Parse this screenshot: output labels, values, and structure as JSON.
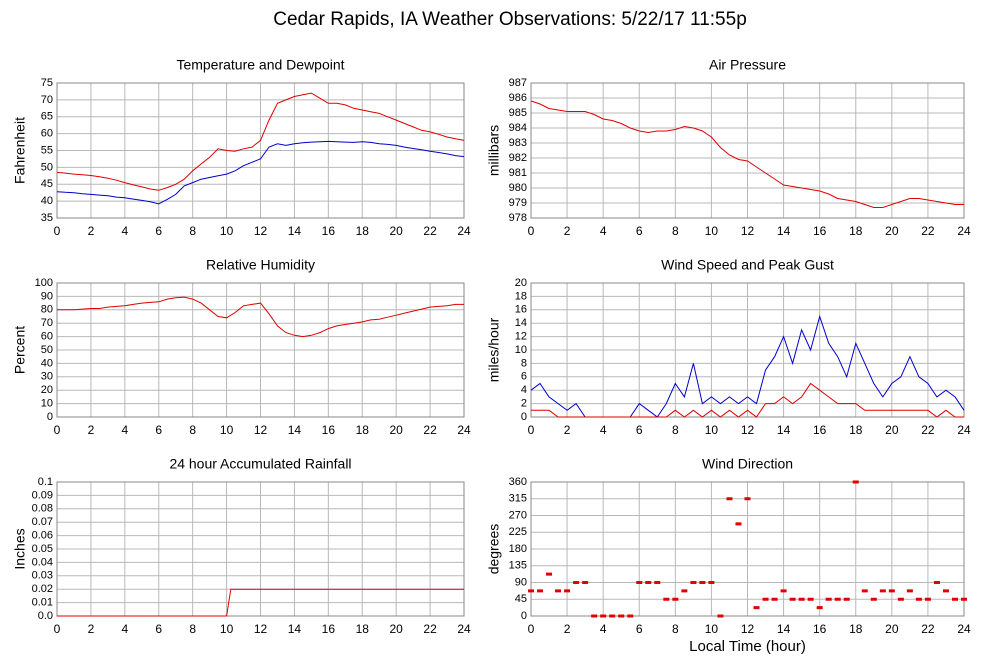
{
  "title": "Cedar Rapids, IA Weather Observations: 5/22/17 11:55p",
  "chart_data": [
    {
      "type": "line",
      "title": "Temperature and Dewpoint",
      "ylabel": "Fahrenheit",
      "x": [
        0,
        0.5,
        1,
        1.5,
        2,
        2.5,
        3,
        3.5,
        4,
        4.5,
        5,
        5.5,
        6,
        6.5,
        7,
        7.5,
        8,
        8.5,
        9,
        9.5,
        10,
        10.5,
        11,
        11.5,
        12,
        12.5,
        13,
        13.5,
        14,
        14.5,
        15,
        15.5,
        16,
        16.5,
        17,
        17.5,
        18,
        18.5,
        19,
        19.5,
        20,
        20.5,
        21,
        21.5,
        22,
        22.5,
        23,
        23.5,
        24
      ],
      "series": [
        {
          "color": "#e00000",
          "values": [
            48.5,
            48.3,
            48,
            47.8,
            47.6,
            47.2,
            46.8,
            46.2,
            45.5,
            44.8,
            44.2,
            43.6,
            43.2,
            44,
            45,
            46.5,
            49,
            51,
            53,
            55.5,
            55,
            54.8,
            55.5,
            56,
            58,
            64,
            69,
            70,
            71,
            71.5,
            72,
            70.5,
            69,
            69,
            68.5,
            67.5,
            67,
            66.5,
            66,
            65,
            64,
            63,
            62,
            61,
            60.5,
            59.8,
            59,
            58.5,
            58
          ]
        },
        {
          "color": "#0000d0",
          "values": [
            42.8,
            42.6,
            42.5,
            42.2,
            42,
            41.8,
            41.6,
            41.2,
            41,
            40.6,
            40.2,
            39.8,
            39.2,
            40.5,
            42,
            44.5,
            45.5,
            46.5,
            47,
            47.5,
            48,
            49,
            50.5,
            51.5,
            52.5,
            56,
            57,
            56.5,
            57,
            57.3,
            57.5,
            57.6,
            57.7,
            57.6,
            57.5,
            57.4,
            57.6,
            57.4,
            57,
            56.8,
            56.5,
            56,
            55.6,
            55.2,
            54.8,
            54.4,
            54,
            53.5,
            53.2
          ]
        }
      ],
      "xlim": [
        0,
        24
      ],
      "xticks": [
        0,
        2,
        4,
        6,
        8,
        10,
        12,
        14,
        16,
        18,
        20,
        22,
        24
      ],
      "ylim": [
        35,
        75
      ],
      "yticks": [
        35,
        40,
        45,
        50,
        55,
        60,
        65,
        70,
        75
      ],
      "grid": true
    },
    {
      "type": "line",
      "title": "Air Pressure",
      "ylabel": "millibars",
      "x": [
        0,
        0.5,
        1,
        1.5,
        2,
        2.5,
        3,
        3.5,
        4,
        4.5,
        5,
        5.5,
        6,
        6.5,
        7,
        7.5,
        8,
        8.5,
        9,
        9.5,
        10,
        10.5,
        11,
        11.5,
        12,
        12.5,
        13,
        13.5,
        14,
        14.5,
        15,
        15.5,
        16,
        16.5,
        17,
        17.5,
        18,
        18.5,
        19,
        19.5,
        20,
        20.5,
        21,
        21.5,
        22,
        22.5,
        23,
        23.5,
        24
      ],
      "series": [
        {
          "color": "#e00000",
          "values": [
            985.8,
            985.6,
            985.3,
            985.2,
            985.1,
            985.1,
            985.1,
            984.9,
            984.6,
            984.5,
            984.3,
            984.0,
            983.8,
            983.7,
            983.8,
            983.8,
            983.9,
            984.1,
            984,
            983.8,
            983.4,
            982.7,
            982.2,
            981.9,
            981.8,
            981.4,
            981,
            980.6,
            980.2,
            980.1,
            980,
            979.9,
            979.8,
            979.6,
            979.3,
            979.2,
            979.1,
            978.9,
            978.7,
            978.7,
            978.9,
            979.1,
            979.3,
            979.3,
            979.2,
            979.1,
            979,
            978.9,
            978.9
          ]
        }
      ],
      "xlim": [
        0,
        24
      ],
      "xticks": [
        0,
        2,
        4,
        6,
        8,
        10,
        12,
        14,
        16,
        18,
        20,
        22,
        24
      ],
      "ylim": [
        978,
        987
      ],
      "yticks": [
        978,
        979,
        980,
        981,
        982,
        983,
        984,
        985,
        986,
        987
      ],
      "grid": true
    },
    {
      "type": "line",
      "title": "Relative Humidity",
      "ylabel": "Percent",
      "x": [
        0,
        0.5,
        1,
        1.5,
        2,
        2.5,
        3,
        3.5,
        4,
        4.5,
        5,
        5.5,
        6,
        6.5,
        7,
        7.5,
        8,
        8.5,
        9,
        9.5,
        10,
        10.5,
        11,
        11.5,
        12,
        12.5,
        13,
        13.5,
        14,
        14.5,
        15,
        15.5,
        16,
        16.5,
        17,
        17.5,
        18,
        18.5,
        19,
        19.5,
        20,
        20.5,
        21,
        21.5,
        22,
        22.5,
        23,
        23.5,
        24
      ],
      "series": [
        {
          "color": "#e00000",
          "values": [
            80,
            80,
            80,
            80.5,
            81,
            81,
            82,
            82.5,
            83,
            84,
            85,
            85.5,
            86,
            88,
            89,
            89.5,
            88,
            85,
            80,
            75,
            74,
            78,
            83,
            84,
            85,
            77,
            68,
            63,
            61,
            60,
            61,
            63,
            66,
            68,
            69,
            70,
            71,
            72.5,
            73,
            74.5,
            76,
            77.5,
            79,
            80.5,
            82,
            82.5,
            83,
            84,
            84
          ]
        }
      ],
      "xlim": [
        0,
        24
      ],
      "xticks": [
        0,
        2,
        4,
        6,
        8,
        10,
        12,
        14,
        16,
        18,
        20,
        22,
        24
      ],
      "ylim": [
        0,
        100
      ],
      "yticks": [
        0,
        10,
        20,
        30,
        40,
        50,
        60,
        70,
        80,
        90,
        100
      ],
      "grid": true
    },
    {
      "type": "line",
      "title": "Wind Speed and Peak Gust",
      "ylabel": "miles/hour",
      "x": [
        0,
        0.5,
        1,
        1.5,
        2,
        2.5,
        3,
        3.5,
        4,
        4.5,
        5,
        5.5,
        6,
        6.5,
        7,
        7.5,
        8,
        8.5,
        9,
        9.5,
        10,
        10.5,
        11,
        11.5,
        12,
        12.5,
        13,
        13.5,
        14,
        14.5,
        15,
        15.5,
        16,
        16.5,
        17,
        17.5,
        18,
        18.5,
        19,
        19.5,
        20,
        20.5,
        21,
        21.5,
        22,
        22.5,
        23,
        23.5,
        24
      ],
      "series": [
        {
          "color": "#0000d0",
          "values": [
            4,
            5,
            3,
            2,
            1,
            2,
            0,
            0,
            0,
            0,
            0,
            0,
            2,
            1,
            0,
            2,
            5,
            3,
            8,
            2,
            3,
            2,
            3,
            2,
            3,
            2,
            7,
            9,
            12,
            8,
            13,
            10,
            15,
            11,
            9,
            6,
            11,
            8,
            5,
            3,
            5,
            6,
            9,
            6,
            5,
            3,
            4,
            3,
            1
          ]
        },
        {
          "color": "#e00000",
          "values": [
            1,
            1,
            1,
            0,
            0,
            0,
            0,
            0,
            0,
            0,
            0,
            0,
            0,
            0,
            0,
            0,
            1,
            0,
            1,
            0,
            1,
            0,
            1,
            0,
            1,
            0,
            2,
            2,
            3,
            2,
            3,
            5,
            4,
            3,
            2,
            2,
            2,
            1,
            1,
            1,
            1,
            1,
            1,
            1,
            1,
            0,
            1,
            0,
            0
          ]
        }
      ],
      "xlim": [
        0,
        24
      ],
      "xticks": [
        0,
        2,
        4,
        6,
        8,
        10,
        12,
        14,
        16,
        18,
        20,
        22,
        24
      ],
      "ylim": [
        0,
        20
      ],
      "yticks": [
        0,
        2,
        4,
        6,
        8,
        10,
        12,
        14,
        16,
        18,
        20
      ],
      "grid": true
    },
    {
      "type": "line",
      "title": "24 hour Accumulated Rainfall",
      "ylabel": "Inches",
      "x": [
        0,
        10,
        10.25,
        24
      ],
      "series": [
        {
          "color": "#e00000",
          "values": [
            0,
            0,
            0.02,
            0.02
          ]
        }
      ],
      "xlim": [
        0,
        24
      ],
      "xticks": [
        0,
        2,
        4,
        6,
        8,
        10,
        12,
        14,
        16,
        18,
        20,
        22,
        24
      ],
      "ylim": [
        0,
        0.1
      ],
      "yticks": [
        {
          "value": 0,
          "label": "0.0"
        },
        0.01,
        0.02,
        0.03,
        0.04,
        0.05,
        0.06,
        0.07,
        0.08,
        0.09,
        0.1
      ],
      "grid": true
    },
    {
      "type": "scatter",
      "title": "Wind Direction",
      "ylabel": "degrees",
      "xlabel": "Local Time (hour)",
      "x": [
        0,
        0.5,
        1,
        1.5,
        2,
        2.5,
        3,
        3.5,
        4,
        4.5,
        5,
        5.5,
        6,
        6.5,
        7,
        7.5,
        8,
        8.5,
        9,
        9.5,
        10,
        10.5,
        11,
        11.5,
        12,
        12.5,
        13,
        13.5,
        14,
        14.5,
        15,
        15.5,
        16,
        16.5,
        17,
        17.5,
        18,
        18.5,
        19,
        19.5,
        20,
        20.5,
        21,
        21.5,
        22,
        22.5,
        23,
        23.5,
        24
      ],
      "series": [
        {
          "color": "#e00000",
          "values": [
            67.5,
            67.5,
            112.5,
            67.5,
            67.5,
            90,
            90,
            0,
            0,
            0,
            0,
            0,
            90,
            90,
            90,
            45,
            45,
            67.5,
            90,
            90,
            90,
            0,
            315,
            247.5,
            315,
            22.5,
            45,
            45,
            67.5,
            45,
            45,
            45,
            22.5,
            45,
            45,
            45,
            360,
            67.5,
            45,
            67.5,
            67.5,
            45,
            67.5,
            45,
            45,
            90,
            67.5,
            45,
            45
          ]
        }
      ],
      "xlim": [
        0,
        24
      ],
      "xticks": [
        0,
        2,
        4,
        6,
        8,
        10,
        12,
        14,
        16,
        18,
        20,
        22,
        24
      ],
      "ylim": [
        0,
        360
      ],
      "yticks": [
        0,
        45,
        90,
        135,
        180,
        225,
        270,
        315,
        360
      ],
      "grid": true
    }
  ]
}
